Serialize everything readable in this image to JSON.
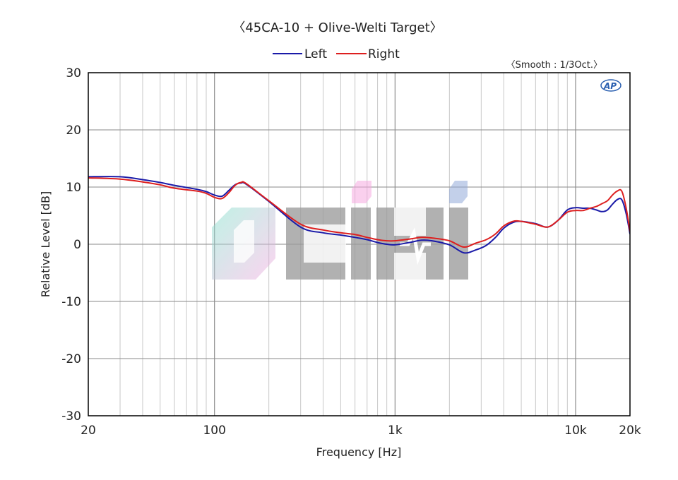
{
  "chart_data": {
    "type": "line",
    "title": "〈45CA-10 + Olive-Welti Target〉",
    "subtitle": "〈Smooth : 1/3Oct.〉",
    "xlabel": "Frequency [Hz]",
    "ylabel": "Relative Level [dB]",
    "xscale": "log",
    "xlim": [
      20,
      20000
    ],
    "ylim": [
      -30,
      30
    ],
    "grid": true,
    "legend_position": "top-center",
    "x_ticks": [
      {
        "value": 20,
        "label": "20"
      },
      {
        "value": 100,
        "label": "100"
      },
      {
        "value": 1000,
        "label": "1k"
      },
      {
        "value": 10000,
        "label": "10k"
      },
      {
        "value": 20000,
        "label": "20k"
      }
    ],
    "y_ticks": [
      {
        "value": 30,
        "label": "30"
      },
      {
        "value": 20,
        "label": "20"
      },
      {
        "value": 10,
        "label": "10"
      },
      {
        "value": 0,
        "label": "0"
      },
      {
        "value": -10,
        "label": "-10"
      },
      {
        "value": -20,
        "label": "-20"
      },
      {
        "value": -30,
        "label": "-30"
      }
    ],
    "series": [
      {
        "name": "Left",
        "color": "#1a1aa8",
        "points": [
          [
            20,
            11.8
          ],
          [
            30,
            11.8
          ],
          [
            40,
            11.3
          ],
          [
            50,
            10.8
          ],
          [
            60,
            10.3
          ],
          [
            80,
            9.6
          ],
          [
            90,
            9.2
          ],
          [
            100,
            8.6
          ],
          [
            110,
            8.4
          ],
          [
            120,
            9.4
          ],
          [
            130,
            10.4
          ],
          [
            140,
            10.7
          ],
          [
            150,
            10.5
          ],
          [
            200,
            7.5
          ],
          [
            300,
            3.0
          ],
          [
            400,
            2.0
          ],
          [
            500,
            1.6
          ],
          [
            600,
            1.2
          ],
          [
            700,
            0.8
          ],
          [
            800,
            0.3
          ],
          [
            900,
            0.0
          ],
          [
            1000,
            -0.1
          ],
          [
            1200,
            0.3
          ],
          [
            1400,
            0.7
          ],
          [
            1600,
            0.6
          ],
          [
            2000,
            -0.1
          ],
          [
            2400,
            -1.5
          ],
          [
            2800,
            -1.0
          ],
          [
            3200,
            -0.2
          ],
          [
            3600,
            1.2
          ],
          [
            4000,
            2.8
          ],
          [
            4500,
            3.8
          ],
          [
            5000,
            4.0
          ],
          [
            6000,
            3.6
          ],
          [
            7000,
            3.0
          ],
          [
            8000,
            4.2
          ],
          [
            9000,
            6.0
          ],
          [
            10000,
            6.4
          ],
          [
            11000,
            6.3
          ],
          [
            12000,
            6.3
          ],
          [
            13000,
            6.0
          ],
          [
            14000,
            5.7
          ],
          [
            15000,
            6.0
          ],
          [
            16000,
            7.0
          ],
          [
            17000,
            7.8
          ],
          [
            18000,
            7.8
          ],
          [
            19000,
            5.5
          ],
          [
            20000,
            1.8
          ]
        ]
      },
      {
        "name": "Right",
        "color": "#dd1f1f",
        "points": [
          [
            20,
            11.6
          ],
          [
            30,
            11.4
          ],
          [
            40,
            10.9
          ],
          [
            50,
            10.4
          ],
          [
            60,
            9.8
          ],
          [
            80,
            9.3
          ],
          [
            90,
            8.9
          ],
          [
            100,
            8.2
          ],
          [
            110,
            8.0
          ],
          [
            120,
            9.0
          ],
          [
            130,
            10.3
          ],
          [
            140,
            10.8
          ],
          [
            150,
            10.6
          ],
          [
            200,
            7.6
          ],
          [
            300,
            3.5
          ],
          [
            400,
            2.5
          ],
          [
            500,
            2.0
          ],
          [
            600,
            1.7
          ],
          [
            700,
            1.2
          ],
          [
            800,
            0.8
          ],
          [
            900,
            0.6
          ],
          [
            1000,
            0.6
          ],
          [
            1200,
            0.9
          ],
          [
            1400,
            1.2
          ],
          [
            1600,
            1.1
          ],
          [
            2000,
            0.6
          ],
          [
            2400,
            -0.5
          ],
          [
            2800,
            0.2
          ],
          [
            3200,
            0.8
          ],
          [
            3600,
            1.8
          ],
          [
            4000,
            3.2
          ],
          [
            4500,
            4.0
          ],
          [
            5000,
            4.0
          ],
          [
            6000,
            3.5
          ],
          [
            7000,
            3.0
          ],
          [
            8000,
            4.2
          ],
          [
            9000,
            5.6
          ],
          [
            10000,
            5.9
          ],
          [
            11000,
            5.9
          ],
          [
            12000,
            6.3
          ],
          [
            13000,
            6.6
          ],
          [
            14000,
            7.1
          ],
          [
            15000,
            7.6
          ],
          [
            16000,
            8.6
          ],
          [
            17000,
            9.3
          ],
          [
            18000,
            9.3
          ],
          [
            19000,
            6.5
          ],
          [
            20000,
            2.2
          ]
        ]
      }
    ]
  },
  "watermark": {
    "text": "CIHI",
    "colors": [
      "#9a9a9a",
      "#7fe3c9",
      "#f5a8e0",
      "#8fa9d8"
    ]
  },
  "logo": {
    "text": "AP",
    "color": "#2a5fb0"
  }
}
